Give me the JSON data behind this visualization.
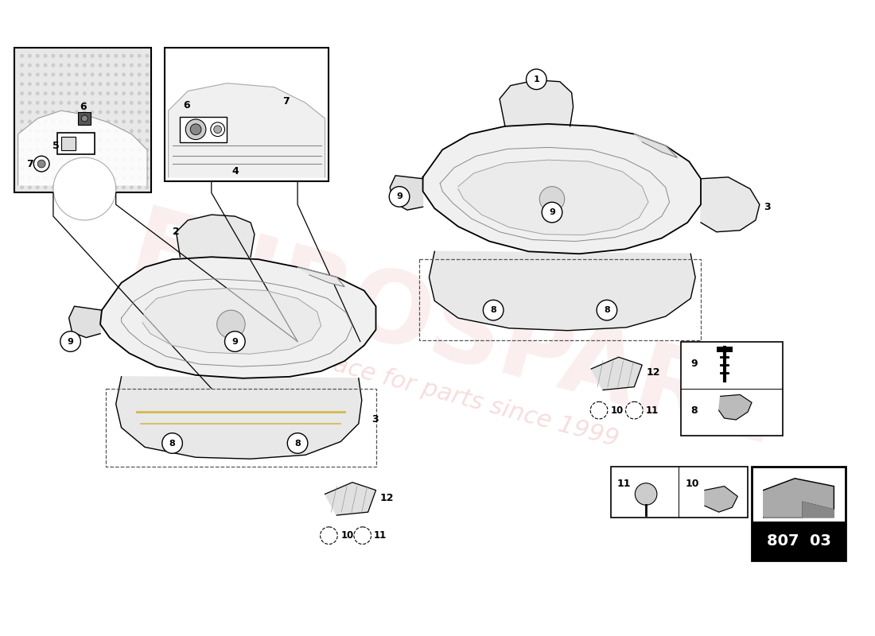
{
  "bg": "#ffffff",
  "lc": "#000000",
  "gray1": "#f0f0f0",
  "gray2": "#e0e0e0",
  "gray3": "#cccccc",
  "gray4": "#888888",
  "yellow": "#d4b84a",
  "watermark_text1": "EUROSPARE",
  "watermark_text2": "a place for parts since 1999",
  "part_number": "807 03",
  "badge_bg": "#000000",
  "badge_text_color": "#ffffff"
}
